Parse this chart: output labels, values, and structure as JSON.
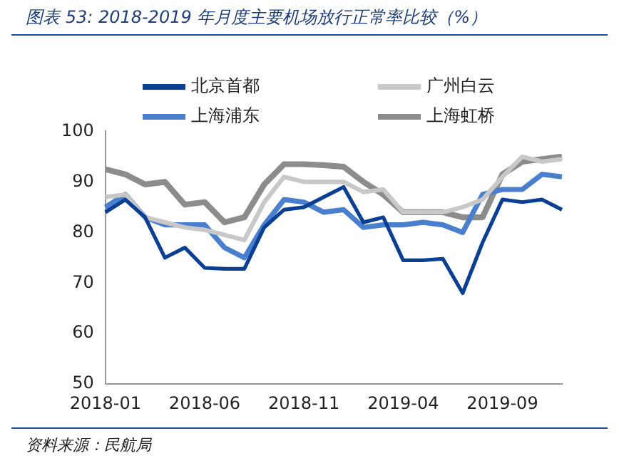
{
  "chart_data": {
    "type": "line",
    "title": "图表 53:  2018-2019 年月度主要机场放行正常率比较（%）",
    "categories": [
      "2018-01",
      null,
      null,
      null,
      null,
      "2018-06",
      null,
      null,
      null,
      null,
      "2018-11",
      null,
      null,
      null,
      null,
      "2019-04",
      null,
      null,
      null,
      null,
      "2019-09",
      null,
      null,
      null
    ],
    "series": [
      {
        "name": "北京首都",
        "color": "#0a3f94",
        "values": [
          84,
          86.5,
          83,
          75,
          77,
          73,
          72.8,
          72.8,
          81,
          84.5,
          85,
          87,
          89,
          82,
          83,
          74.5,
          74.5,
          74.8,
          68,
          78,
          86.5,
          86,
          86.5,
          84.5
        ]
      },
      {
        "name": "广州白云",
        "color": "#c8c8c8",
        "values": [
          87,
          87.5,
          83,
          82,
          81,
          80.5,
          79.5,
          78.5,
          86,
          91,
          90,
          90,
          90,
          88,
          88.5,
          84,
          84,
          84,
          85,
          86.5,
          91,
          95,
          94,
          94.5
        ]
      },
      {
        "name": "上海浦东",
        "color": "#4a7fcf",
        "values": [
          85,
          87.5,
          83,
          81.5,
          81.5,
          81.5,
          77,
          75,
          81.5,
          86.5,
          86,
          84,
          84.5,
          81,
          81.5,
          81.5,
          82,
          81.5,
          80,
          87.5,
          88.5,
          88.5,
          91.5,
          91
        ]
      },
      {
        "name": "上海虹桥",
        "color": "#8c8c8c",
        "values": [
          92.5,
          91.5,
          89.5,
          90,
          85.5,
          86,
          82,
          83,
          89.5,
          93.5,
          93.5,
          93.3,
          93,
          90,
          87.5,
          84,
          84,
          84,
          83,
          83,
          91.5,
          94,
          94.5,
          95
        ]
      }
    ],
    "ylim": [
      50,
      100
    ],
    "yticks": [
      50,
      60,
      70,
      80,
      90,
      100
    ],
    "grid": false,
    "legend": "top",
    "marker": "none",
    "line_style": "solid",
    "annotations": [
      "资料来源：民航局"
    ]
  }
}
